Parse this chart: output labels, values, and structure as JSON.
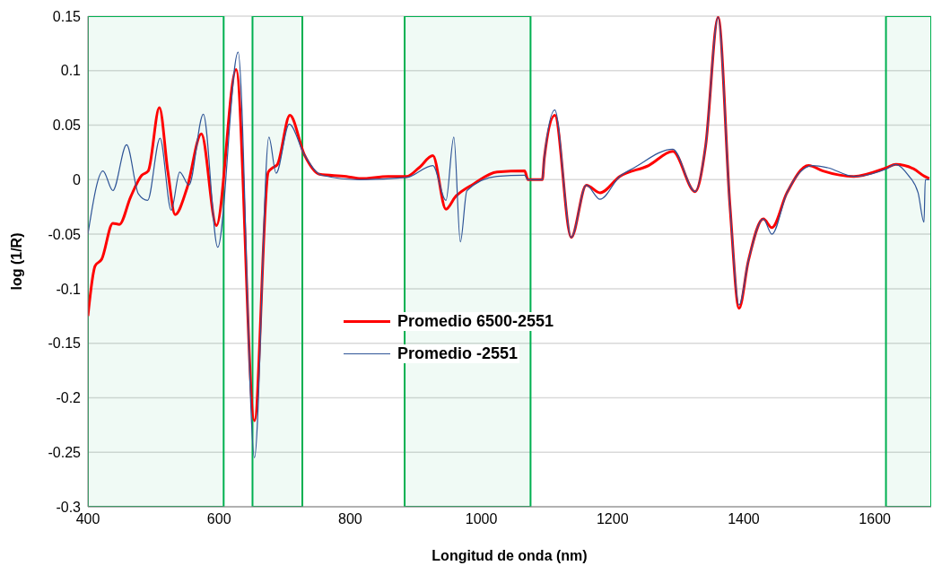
{
  "chart_data": {
    "type": "line",
    "xlabel": "Longitud de onda (nm)",
    "ylabel": "log (1/R)",
    "xlim": [
      400,
      1686
    ],
    "xticks": [
      400,
      600,
      800,
      1000,
      1200,
      1400,
      1600
    ],
    "ylim": [
      -0.3,
      0.15
    ],
    "yticks": [
      -0.3,
      -0.25,
      -0.2,
      -0.15,
      -0.1,
      -0.05,
      0,
      0.05,
      0.1,
      0.15
    ],
    "grid": "y",
    "legend": "left",
    "marker": "none",
    "line_style": "solid",
    "bands": [
      {
        "axis": "x",
        "from": 400,
        "to": 607,
        "color": "#00b050"
      },
      {
        "axis": "x",
        "from": 651,
        "to": 727,
        "color": "#00b050"
      },
      {
        "axis": "x",
        "from": 883,
        "to": 1075,
        "color": "#00b050"
      },
      {
        "axis": "x",
        "from": 1617,
        "to": 1686,
        "color": "#00b050"
      }
    ],
    "series": [
      {
        "name": "Promedio 6500-2551",
        "color": "#ff0000",
        "x": [
          400,
          411,
          421,
          438,
          448,
          465,
          482,
          492,
          509,
          522,
          533,
          551,
          573,
          596,
          626,
          654,
          675,
          682,
          689,
          708,
          730,
          753,
          794,
          816,
          858,
          886,
          905,
          926,
          946,
          960,
          988,
          1024,
          1066,
          1071,
          1093,
          1096,
          1112,
          1137,
          1160,
          1181,
          1211,
          1255,
          1292,
          1326,
          1342,
          1361,
          1379,
          1393,
          1407,
          1430,
          1443,
          1466,
          1499,
          1521,
          1568,
          1618,
          1632,
          1659,
          1676,
          1683
        ],
        "values": [
          -0.125,
          -0.079,
          -0.073,
          -0.04,
          -0.041,
          -0.016,
          0.004,
          0.008,
          0.066,
          0.007,
          -0.032,
          -0.008,
          0.042,
          -0.042,
          0.101,
          -0.221,
          0.007,
          0.011,
          0.014,
          0.059,
          0.023,
          0.005,
          0.003,
          0.001,
          0.003,
          0.003,
          0.011,
          0.022,
          -0.027,
          -0.016,
          -0.004,
          0.007,
          0.008,
          0,
          0,
          0.02,
          0.059,
          -0.053,
          -0.005,
          -0.012,
          0.003,
          0.013,
          0.026,
          -0.011,
          0.031,
          0.149,
          -0.023,
          -0.118,
          -0.075,
          -0.036,
          -0.044,
          -0.012,
          0.013,
          0.008,
          0.003,
          0.011,
          0.014,
          0.01,
          0.003,
          0.001
        ]
      },
      {
        "name": "Promedio -2551",
        "color": "#2f5597",
        "x": [
          400,
          423,
          438,
          459,
          477,
          491,
          510,
          527,
          540,
          554,
          576,
          598,
          629,
          654,
          676,
          687,
          707,
          730,
          757,
          816,
          886,
          926,
          946,
          958,
          968,
          978,
          1024,
          1066,
          1071,
          1093,
          1096,
          1112,
          1137,
          1160,
          1181,
          1211,
          1233,
          1292,
          1326,
          1342,
          1361,
          1379,
          1393,
          1407,
          1430,
          1443,
          1466,
          1505,
          1528,
          1568,
          1618,
          1632,
          1651,
          1666,
          1675,
          1677,
          1683
        ],
        "values": [
          -0.05,
          0.008,
          -0.01,
          0.032,
          -0.013,
          -0.019,
          0.038,
          -0.028,
          0.007,
          -0.005,
          0.06,
          -0.062,
          0.117,
          -0.255,
          0.039,
          0.006,
          0.051,
          0.023,
          0.004,
          0,
          0.002,
          0.013,
          -0.019,
          0.039,
          -0.057,
          -0.01,
          0.003,
          0.004,
          0,
          0,
          0.02,
          0.064,
          -0.053,
          -0.005,
          -0.018,
          0.003,
          0.011,
          0.028,
          -0.011,
          0.031,
          0.149,
          -0.023,
          -0.115,
          -0.075,
          -0.036,
          -0.05,
          -0.012,
          0.013,
          0.011,
          0.003,
          0.01,
          0.014,
          0.004,
          -0.012,
          -0.039,
          0,
          0
        ]
      }
    ]
  }
}
